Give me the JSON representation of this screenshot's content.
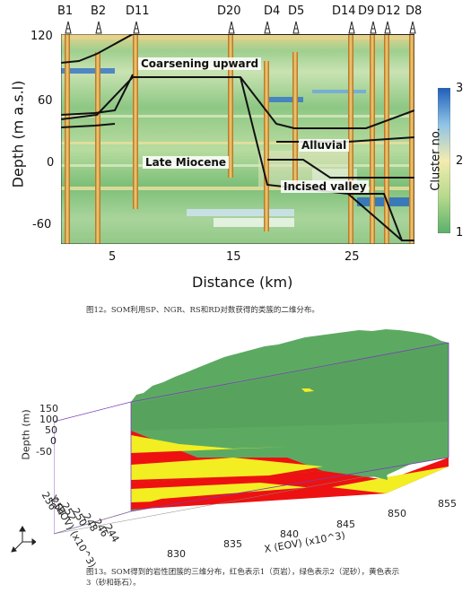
{
  "figure12": {
    "wells": [
      "B1",
      "B2",
      "D11",
      "D20",
      "D4",
      "D5",
      "D14",
      "D9",
      "D12",
      "D8"
    ],
    "y_ticks": [
      "120",
      "60",
      "0",
      "-60"
    ],
    "x_ticks": [
      "5",
      "15",
      "25"
    ],
    "ylabel": "Depth (m a.s.l)",
    "xlabel": "Distance (km)",
    "annotations": {
      "coarsening": "Coarsening upward",
      "alluvial": "Alluvial",
      "late_miocene": "Late Miocene",
      "incised": "Incised valley"
    },
    "colorbar": {
      "label": "Cluster no.",
      "ticks": [
        "3",
        "2",
        "1"
      ],
      "colors": {
        "1": "#66b76b",
        "2": "#f2e8a8",
        "3": "#2a6cc0"
      }
    },
    "caption": "图12。SOM利用SP、NGR、RS和RD对数获得的类簇的二维分布。"
  },
  "figure13": {
    "z_label": "Depth (m)",
    "z_ticks": [
      "150",
      "100",
      "50",
      "0",
      "-50"
    ],
    "y_label": "Y (EOV) (x10^3)",
    "y_ticks": [
      "256",
      "254",
      "252",
      "250",
      "248",
      "246",
      "244"
    ],
    "x_label": "X (EOV) (x10^3)",
    "x_ticks": [
      "830",
      "835",
      "840",
      "845",
      "850",
      "855"
    ],
    "colors": {
      "shale": "#ee1111",
      "silt": "#5caa62",
      "sand": "#f2ee22"
    },
    "caption_line1": "图13。SOM得到的岩性团簇的三维分布，红色表示1（页岩），绿色表示2（泥砂），黄色表示",
    "caption_line2": "3（砂和砾石）。"
  }
}
